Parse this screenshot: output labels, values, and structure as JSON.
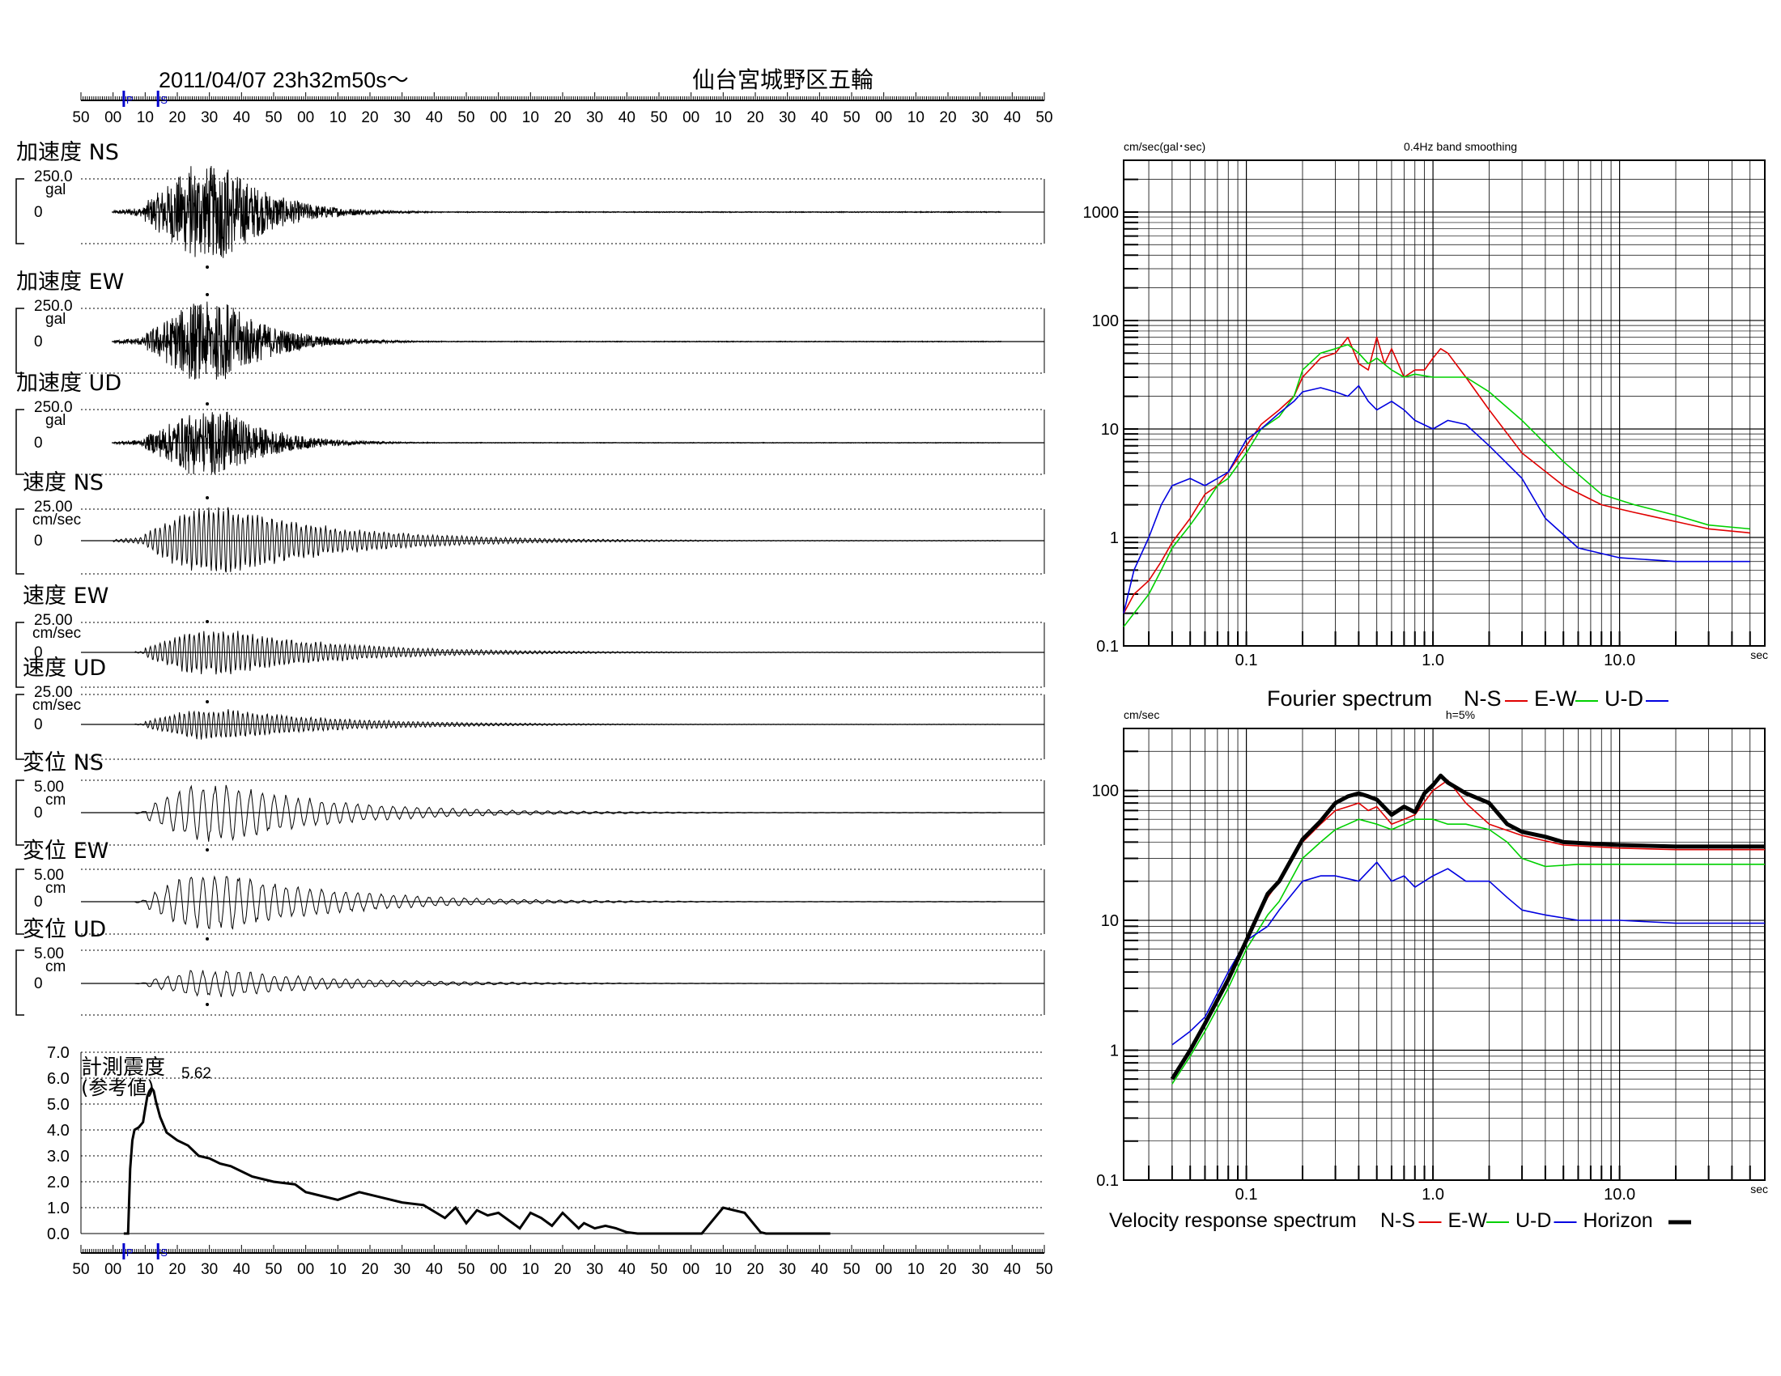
{
  "header": {
    "datetime": "2011/04/07  23h32m50s～",
    "station": "仙台宮城野区五輪",
    "time_ticks": [
      "50",
      "00",
      "10",
      "20",
      "30",
      "40",
      "50",
      "00",
      "10",
      "20",
      "30",
      "40",
      "50",
      "00",
      "10",
      "20",
      "30",
      "40",
      "50",
      "00",
      "10",
      "20",
      "30",
      "40",
      "50",
      "00",
      "10",
      "20",
      "30",
      "40",
      "50"
    ],
    "p_marker": "P",
    "s_marker": "S"
  },
  "colors": {
    "ns": "#e00000",
    "ew": "#00d000",
    "ud": "#0000e0",
    "horizon": "#000000",
    "marker": "#0000cc"
  },
  "chart_data": [
    {
      "type": "line",
      "label": "加速度 NS",
      "scale": "250.0",
      "unit": "gal",
      "zero": "0",
      "peak_sign": "-"
    },
    {
      "type": "line",
      "label": "加速度 EW",
      "scale": "250.0",
      "unit": "gal",
      "zero": "0",
      "peak_sign": "+"
    },
    {
      "type": "line",
      "label": "加速度 UD",
      "scale": "250.0",
      "unit": "gal",
      "zero": "0",
      "peak_sign": "+"
    },
    {
      "type": "line",
      "label": "速度 NS",
      "scale": "25.00",
      "unit": "cm/sec",
      "zero": "0",
      "peak_sign": "+"
    },
    {
      "type": "line",
      "label": "速度 EW",
      "scale": "25.00",
      "unit": "cm/sec",
      "zero": "0",
      "peak_sign": "+"
    },
    {
      "type": "line",
      "label": "速度 UD",
      "scale": "25.00",
      "unit": "cm/sec",
      "zero": "0",
      "peak_sign": "+"
    },
    {
      "type": "line",
      "label": "変位 NS",
      "scale": "5.00",
      "unit": "cm",
      "zero": "0",
      "peak_sign": "-"
    },
    {
      "type": "line",
      "label": "変位 EW",
      "scale": "5.00",
      "unit": "cm",
      "zero": "0",
      "peak_sign": "-"
    },
    {
      "type": "line",
      "label": "変位 UD",
      "scale": "5.00",
      "unit": "cm",
      "zero": "0",
      "peak_sign": "-"
    },
    {
      "type": "line",
      "label_line1": "計測震度",
      "label_line2": "(参考値)",
      "peak_label": "5.62",
      "y_ticks": [
        "7.0",
        "6.0",
        "5.0",
        "4.0",
        "3.0",
        "2.0",
        "1.0",
        "0.0"
      ],
      "ylim": [
        0,
        7
      ],
      "x_seconds": [
        0,
        2,
        4,
        6,
        8,
        10,
        14,
        18,
        20,
        22,
        24,
        26,
        28,
        30,
        34,
        40,
        50,
        60,
        70,
        80,
        90,
        100,
        120,
        140,
        160,
        170,
        180,
        200,
        220,
        240,
        260,
        280,
        300,
        310,
        320,
        330,
        340,
        350,
        360,
        370,
        380,
        390,
        400,
        410,
        420,
        425,
        430,
        440,
        450,
        460,
        470,
        480,
        500,
        520,
        540,
        560,
        580,
        590,
        595,
        600,
        610,
        620,
        630,
        640,
        650,
        660
      ],
      "values": [
        0,
        0,
        0,
        2.5,
        3.6,
        4.0,
        4.1,
        4.3,
        4.8,
        5.3,
        5.5,
        5.62,
        5.5,
        5.1,
        4.5,
        3.9,
        3.6,
        3.4,
        3.0,
        2.9,
        2.7,
        2.6,
        2.2,
        2.0,
        1.9,
        1.6,
        1.5,
        1.3,
        1.6,
        1.4,
        1.2,
        1.1,
        0.6,
        1.0,
        0.4,
        0.9,
        0.7,
        0.8,
        0.5,
        0.2,
        0.8,
        0.6,
        0.3,
        0.8,
        0.4,
        0.2,
        0.4,
        0.2,
        0.3,
        0.2,
        0.05,
        0,
        0,
        0,
        0,
        1.0,
        0.8,
        0.3,
        0.05,
        0,
        0,
        0,
        0,
        0,
        0,
        0
      ]
    },
    {
      "type": "line",
      "title": "Fourier spectrum",
      "ylabel": "cm/sec(gal･sec)",
      "note": "0.4Hz band smoothing",
      "xunit": "sec",
      "log_x": true,
      "log_y": true,
      "xlim": [
        0.022,
        60
      ],
      "ylim": [
        0.1,
        3000
      ],
      "x_ticks": [
        "0.1",
        "1.0",
        "10.0"
      ],
      "y_ticks": [
        "1000",
        "100",
        "10",
        "1",
        "0.1"
      ],
      "series": [
        {
          "name": "N-S",
          "color": "#e00000",
          "x": [
            0.022,
            0.025,
            0.03,
            0.035,
            0.04,
            0.05,
            0.06,
            0.07,
            0.08,
            0.1,
            0.12,
            0.15,
            0.18,
            0.2,
            0.25,
            0.3,
            0.35,
            0.4,
            0.45,
            0.5,
            0.55,
            0.6,
            0.7,
            0.8,
            0.9,
            1.0,
            1.1,
            1.2,
            1.5,
            2,
            3,
            5,
            8,
            12,
            20,
            30,
            50
          ],
          "values": [
            0.2,
            0.3,
            0.4,
            0.6,
            0.9,
            1.5,
            2.5,
            3,
            4,
            7,
            11,
            15,
            20,
            30,
            45,
            50,
            70,
            40,
            35,
            70,
            40,
            55,
            30,
            35,
            35,
            45,
            55,
            50,
            30,
            15,
            6,
            3,
            2,
            1.7,
            1.4,
            1.2,
            1.1
          ]
        },
        {
          "name": "E-W",
          "color": "#00d000",
          "x": [
            0.022,
            0.025,
            0.03,
            0.035,
            0.04,
            0.05,
            0.06,
            0.07,
            0.08,
            0.1,
            0.12,
            0.15,
            0.18,
            0.2,
            0.25,
            0.3,
            0.35,
            0.4,
            0.45,
            0.5,
            0.6,
            0.7,
            0.8,
            1.0,
            1.5,
            2,
            3,
            5,
            8,
            12,
            20,
            30,
            50
          ],
          "values": [
            0.15,
            0.2,
            0.3,
            0.5,
            0.8,
            1.3,
            2,
            3,
            3.5,
            6,
            10,
            13,
            20,
            35,
            50,
            55,
            60,
            50,
            40,
            45,
            35,
            30,
            32,
            30,
            30,
            22,
            12,
            5,
            2.5,
            2,
            1.6,
            1.3,
            1.2
          ]
        },
        {
          "name": "U-D",
          "color": "#0000e0",
          "x": [
            0.022,
            0.025,
            0.03,
            0.035,
            0.04,
            0.05,
            0.06,
            0.07,
            0.08,
            0.1,
            0.12,
            0.15,
            0.18,
            0.2,
            0.25,
            0.3,
            0.35,
            0.4,
            0.45,
            0.5,
            0.6,
            0.7,
            0.8,
            1.0,
            1.2,
            1.5,
            2,
            3,
            4,
            6,
            10,
            20,
            50
          ],
          "values": [
            0.2,
            0.5,
            1,
            2,
            3,
            3.5,
            3,
            3.5,
            4,
            8,
            10,
            14,
            18,
            22,
            24,
            22,
            20,
            25,
            18,
            15,
            18,
            15,
            12,
            10,
            12,
            11,
            7,
            3.5,
            1.5,
            0.8,
            0.65,
            0.6,
            0.6
          ]
        }
      ]
    },
    {
      "type": "line",
      "title": "Velocity response spectrum",
      "ylabel": "cm/sec",
      "note": "h=5%",
      "xunit": "sec",
      "log_x": true,
      "log_y": true,
      "xlim": [
        0.022,
        60
      ],
      "ylim": [
        0.1,
        300
      ],
      "x_ticks": [
        "0.1",
        "1.0",
        "10.0"
      ],
      "y_ticks": [
        "100",
        "10",
        "1",
        "0.1"
      ],
      "series": [
        {
          "name": "N-S",
          "color": "#e00000",
          "x": [
            0.04,
            0.05,
            0.06,
            0.08,
            0.1,
            0.13,
            0.15,
            0.2,
            0.25,
            0.3,
            0.35,
            0.4,
            0.45,
            0.5,
            0.6,
            0.7,
            0.8,
            1.0,
            1.2,
            1.5,
            2,
            3,
            5,
            10,
            20,
            60
          ],
          "values": [
            0.6,
            1,
            1.6,
            3.5,
            7,
            15,
            20,
            40,
            55,
            70,
            75,
            80,
            70,
            75,
            55,
            60,
            65,
            100,
            120,
            80,
            55,
            45,
            38,
            36,
            35,
            35
          ]
        },
        {
          "name": "E-W",
          "color": "#00d000",
          "x": [
            0.04,
            0.05,
            0.06,
            0.08,
            0.1,
            0.13,
            0.15,
            0.2,
            0.25,
            0.3,
            0.35,
            0.4,
            0.5,
            0.6,
            0.7,
            0.8,
            1.0,
            1.2,
            1.5,
            2,
            2.5,
            3,
            4,
            6,
            10,
            20,
            60
          ],
          "values": [
            0.55,
            0.9,
            1.4,
            3,
            6,
            11,
            14,
            30,
            40,
            50,
            55,
            60,
            55,
            50,
            55,
            60,
            60,
            55,
            55,
            50,
            40,
            30,
            26,
            27,
            27,
            27,
            27
          ]
        },
        {
          "name": "U-D",
          "color": "#0000e0",
          "x": [
            0.04,
            0.05,
            0.06,
            0.08,
            0.1,
            0.13,
            0.15,
            0.2,
            0.25,
            0.3,
            0.4,
            0.5,
            0.6,
            0.7,
            0.8,
            1.0,
            1.2,
            1.5,
            2,
            2.5,
            3,
            4,
            6,
            10,
            20,
            60
          ],
          "values": [
            1.1,
            1.4,
            1.8,
            4,
            7,
            9,
            12,
            20,
            22,
            22,
            20,
            28,
            20,
            22,
            18,
            22,
            25,
            20,
            20,
            15,
            12,
            11,
            10,
            10,
            9.5,
            9.5
          ]
        },
        {
          "name": "Horizon",
          "color": "#000000",
          "x": [
            0.04,
            0.05,
            0.06,
            0.08,
            0.1,
            0.13,
            0.15,
            0.2,
            0.25,
            0.3,
            0.35,
            0.4,
            0.45,
            0.5,
            0.6,
            0.7,
            0.8,
            0.9,
            1.0,
            1.1,
            1.2,
            1.5,
            2,
            2.5,
            3,
            4,
            5,
            7,
            10,
            20,
            60
          ],
          "values": [
            0.6,
            1,
            1.6,
            3.5,
            7,
            16,
            20,
            42,
            58,
            80,
            90,
            95,
            90,
            85,
            65,
            75,
            68,
            95,
            110,
            130,
            115,
            95,
            80,
            55,
            48,
            44,
            40,
            39,
            38,
            37,
            37
          ]
        }
      ]
    }
  ]
}
